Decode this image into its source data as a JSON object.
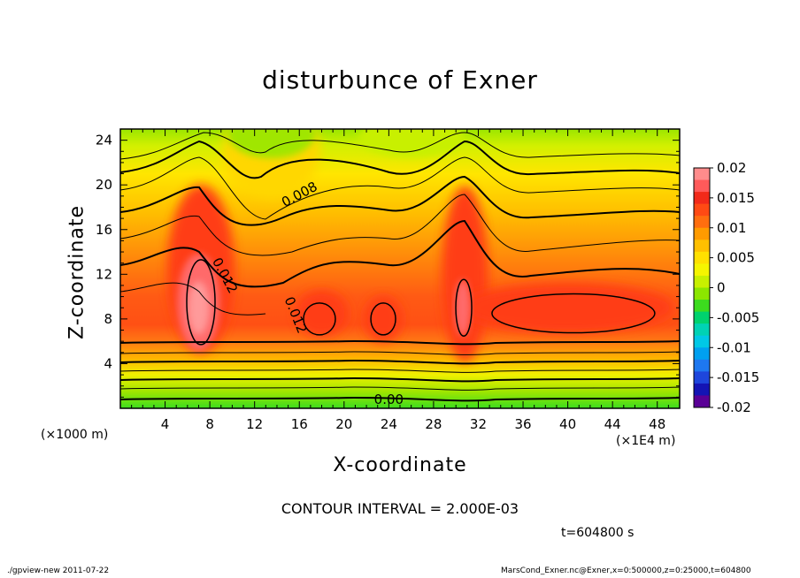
{
  "chart_data": {
    "type": "heatmap",
    "title": "disturbunce of Exner",
    "xlabel": "X-coordinate",
    "ylabel": "Z-coordinate",
    "x_unit_label": "(×1000 m)",
    "x_scale_label": "(×1E4 m)",
    "xlim": [
      0,
      50
    ],
    "ylim": [
      0,
      25
    ],
    "x_ticks": [
      4,
      8,
      12,
      16,
      20,
      24,
      28,
      32,
      36,
      40,
      44,
      48
    ],
    "y_ticks": [
      4,
      8,
      12,
      16,
      20,
      24
    ],
    "colorbar": {
      "ticks": [
        "0.02",
        "0.015",
        "0.01",
        "0.005",
        "0",
        "-0.005",
        "-0.01",
        "-0.015",
        "-0.02"
      ],
      "values": [
        0.02,
        0.015,
        0.01,
        0.005,
        0,
        -0.005,
        -0.01,
        -0.015,
        -0.02
      ],
      "colors": [
        "#ff8c8c",
        "#ff5a5a",
        "#f22a1a",
        "#ff4a14",
        "#ff6e0f",
        "#ff9b00",
        "#ffc000",
        "#ffe000",
        "#f5f500",
        "#c8f000",
        "#8ce600",
        "#3cdc1e",
        "#00d26e",
        "#00d2b4",
        "#00c8e6",
        "#00a0f0",
        "#1e78f0",
        "#1e46dc",
        "#1414b4",
        "#5a0096"
      ]
    },
    "contour_labels": [
      "0.008",
      "0.012",
      "0.012",
      "0.00"
    ],
    "contour_interval": "CONTOUR INTERVAL = 2.000E-03",
    "time": "t=604800 s"
  },
  "footer": {
    "left": "./gpview-new   2011-07-22",
    "right": "MarsCond_Exner.nc@Exner,x=0:500000,z=0:25000,t=604800"
  }
}
